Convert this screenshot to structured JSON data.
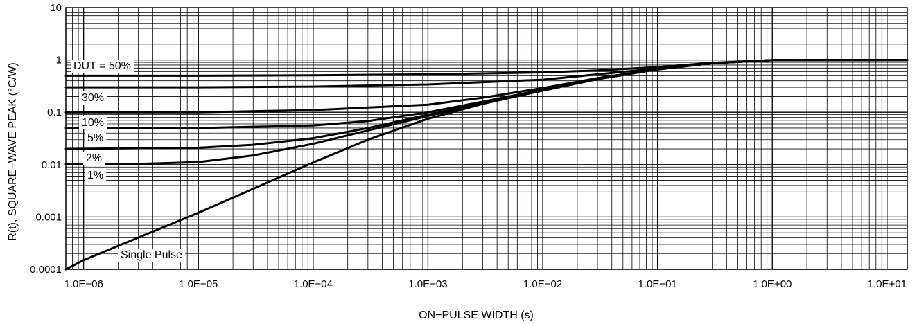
{
  "chart_data": {
    "type": "line",
    "title": "",
    "xlabel": "ON−PULSE WIDTH (s)",
    "ylabel": "R(t), SQUARE−WAVE PEAK (°C/W)",
    "x_scale": "log",
    "y_scale": "log",
    "xlim": [
      7e-07,
      15
    ],
    "ylim": [
      0.0001,
      10
    ],
    "x_ticks": [
      {
        "value": 1e-06,
        "label": "1.0E−06"
      },
      {
        "value": 1e-05,
        "label": "1.0E−05"
      },
      {
        "value": 0.0001,
        "label": "1.0E−04"
      },
      {
        "value": 0.001,
        "label": "1.0E−03"
      },
      {
        "value": 0.01,
        "label": "1.0E−02"
      },
      {
        "value": 0.1,
        "label": "1.0E−01"
      },
      {
        "value": 1,
        "label": "1.0E+00"
      },
      {
        "value": 10,
        "label": "1.0E+01"
      }
    ],
    "y_ticks": [
      {
        "value": 10,
        "label": "10"
      },
      {
        "value": 1,
        "label": "1"
      },
      {
        "value": 0.1,
        "label": "0.1"
      },
      {
        "value": 0.01,
        "label": "0.01"
      },
      {
        "value": 0.001,
        "label": "0.001"
      },
      {
        "value": 0.0001,
        "label": "0.0001"
      }
    ],
    "grid": true,
    "series": [
      {
        "name": "DUT = 50%",
        "x": [
          7e-07,
          1e-05,
          0.0001,
          0.001,
          0.01,
          0.03,
          0.1,
          0.3,
          1,
          15
        ],
        "y": [
          0.5,
          0.5,
          0.51,
          0.53,
          0.58,
          0.63,
          0.73,
          0.88,
          0.99,
          1.0
        ]
      },
      {
        "name": "30%",
        "x": [
          7e-07,
          1e-05,
          0.0001,
          0.001,
          0.01,
          0.03,
          0.1,
          0.3,
          1,
          15
        ],
        "y": [
          0.3,
          0.3,
          0.31,
          0.34,
          0.42,
          0.53,
          0.69,
          0.87,
          0.99,
          1.0
        ]
      },
      {
        "name": "10%",
        "x": [
          7e-07,
          1e-05,
          0.0001,
          0.001,
          0.003,
          0.01,
          0.03,
          0.1,
          0.3,
          1,
          15
        ],
        "y": [
          0.1,
          0.1,
          0.11,
          0.14,
          0.19,
          0.29,
          0.45,
          0.67,
          0.87,
          0.99,
          1.0
        ]
      },
      {
        "name": "5%",
        "x": [
          7e-07,
          1e-05,
          0.0001,
          0.0003,
          0.001,
          0.003,
          0.01,
          0.03,
          0.1,
          0.3,
          1,
          15
        ],
        "y": [
          0.05,
          0.05,
          0.056,
          0.068,
          0.1,
          0.16,
          0.27,
          0.44,
          0.66,
          0.87,
          0.99,
          1.0
        ]
      },
      {
        "name": "2%",
        "x": [
          7e-07,
          1e-05,
          3e-05,
          0.0001,
          0.0003,
          0.001,
          0.003,
          0.01,
          0.03,
          0.1,
          0.3,
          1,
          15
        ],
        "y": [
          0.02,
          0.021,
          0.024,
          0.032,
          0.05,
          0.09,
          0.15,
          0.26,
          0.43,
          0.66,
          0.87,
          0.99,
          1.0
        ]
      },
      {
        "name": "1%",
        "x": [
          7e-07,
          3e-06,
          1e-05,
          3e-05,
          0.0001,
          0.0003,
          0.001,
          0.003,
          0.01,
          0.03,
          0.1,
          0.3,
          1,
          15
        ],
        "y": [
          0.0102,
          0.0103,
          0.0112,
          0.015,
          0.025,
          0.045,
          0.085,
          0.15,
          0.26,
          0.43,
          0.66,
          0.87,
          0.99,
          1.0
        ]
      },
      {
        "name": "Single Pulse",
        "x": [
          7e-07,
          1e-06,
          1e-05,
          0.0001,
          0.0003,
          0.001,
          0.003,
          0.01,
          0.03,
          0.1,
          0.3,
          1,
          15
        ],
        "y": [
          0.0001,
          0.00015,
          0.0012,
          0.011,
          0.03,
          0.075,
          0.145,
          0.26,
          0.43,
          0.66,
          0.87,
          0.99,
          1.0
        ]
      }
    ]
  }
}
